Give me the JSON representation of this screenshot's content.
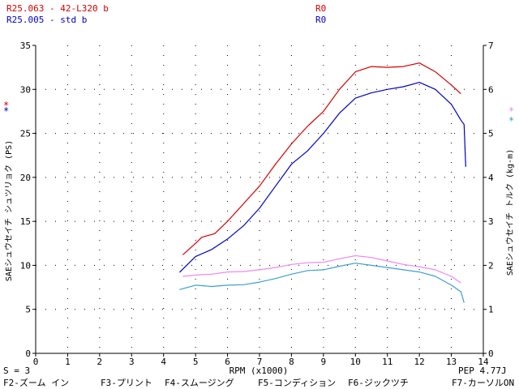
{
  "header": {
    "runs": [
      {
        "label": "R25.063 - 42-L320 b",
        "code": "R0",
        "color": "#d40000"
      },
      {
        "label": "R25.005 - std b",
        "code": "R0",
        "color": "#0000c8"
      }
    ]
  },
  "left_markers": [
    "*",
    "*"
  ],
  "right_markers": [
    "*",
    "*"
  ],
  "footer": {
    "smoothing": "S = 3",
    "version": "PEP 4.77J",
    "function_keys": [
      "F2-ズーム イン",
      "F3-プリント",
      "F4-スムージング",
      "F5-コンディション",
      "F6-ジックツチ",
      "F7-カーソルON"
    ]
  },
  "colors": {
    "power_red": "#d40000",
    "power_blue": "#0000c8",
    "torque_pink": "#ee88ee",
    "torque_cyan": "#3aa0cc",
    "axes": "#000000"
  },
  "chart_data": {
    "type": "line",
    "xlabel": "RPM (x1000)",
    "ylabel_left": "SAEシュウセイチ シュツリョク (PS)",
    "ylabel_right": "SAEシュウセイチ トルク (kg-m)",
    "xlim": [
      0,
      14
    ],
    "ylim_left": [
      0,
      35
    ],
    "ylim_right": [
      0,
      7
    ],
    "x_ticks": [
      "0",
      "1",
      "2",
      "3",
      "4",
      "5",
      "6",
      "7",
      "8",
      "9",
      "10",
      "11",
      "12",
      "13",
      "14"
    ],
    "y_ticks_left": [
      "0",
      "5",
      "10",
      "15",
      "20",
      "25",
      "30",
      "35"
    ],
    "y_ticks_right": [
      "0",
      "1",
      "2",
      "3",
      "4",
      "5",
      "6",
      "7"
    ],
    "grid": "dotted",
    "series": [
      {
        "name": "R25.063 - 42-L320 b",
        "axis": "left",
        "color": "#d40000",
        "x": [
          4.6,
          5.0,
          5.2,
          5.6,
          6.0,
          6.5,
          7.0,
          7.5,
          8.0,
          8.5,
          9.0,
          9.5,
          10.0,
          10.5,
          11.0,
          11.5,
          12.0,
          12.5,
          13.0,
          13.3
        ],
        "y": [
          11.2,
          12.5,
          13.2,
          13.6,
          15.0,
          17.0,
          19.0,
          21.5,
          23.8,
          25.8,
          27.5,
          30.0,
          32.0,
          32.6,
          32.5,
          32.6,
          33.0,
          32.0,
          30.5,
          29.5
        ]
      },
      {
        "name": "R25.005 - std b",
        "axis": "left",
        "color": "#0000c8",
        "x": [
          4.5,
          5.0,
          5.5,
          6.0,
          6.5,
          7.0,
          7.5,
          8.0,
          8.5,
          9.0,
          9.5,
          10.0,
          10.5,
          11.0,
          11.5,
          12.0,
          12.5,
          13.0,
          13.3,
          13.4,
          13.45
        ],
        "y": [
          9.2,
          11.0,
          11.8,
          13.0,
          14.5,
          16.5,
          19.0,
          21.5,
          23.0,
          25.0,
          27.3,
          29.0,
          29.6,
          30.0,
          30.3,
          30.8,
          30.0,
          28.3,
          26.5,
          26.0,
          21.2
        ]
      },
      {
        "name": "R25.063 - 42-L320 b",
        "axis": "right",
        "color": "#ee88ee",
        "x": [
          4.6,
          5.0,
          5.5,
          6.0,
          6.5,
          7.0,
          7.5,
          8.0,
          8.5,
          9.0,
          9.5,
          10.0,
          10.5,
          11.0,
          11.5,
          12.0,
          12.5,
          13.0,
          13.3
        ],
        "y": [
          1.75,
          1.78,
          1.8,
          1.85,
          1.86,
          1.9,
          1.95,
          2.02,
          2.06,
          2.07,
          2.15,
          2.22,
          2.18,
          2.1,
          2.02,
          1.97,
          1.9,
          1.75,
          1.6
        ]
      },
      {
        "name": "R25.005 - std b",
        "axis": "right",
        "color": "#3aa0cc",
        "x": [
          4.5,
          5.0,
          5.5,
          6.0,
          6.5,
          7.0,
          7.5,
          8.0,
          8.5,
          9.0,
          9.5,
          10.0,
          10.5,
          11.0,
          11.5,
          12.0,
          12.5,
          13.0,
          13.3,
          13.4
        ],
        "y": [
          1.45,
          1.55,
          1.52,
          1.55,
          1.56,
          1.62,
          1.7,
          1.8,
          1.88,
          1.9,
          1.98,
          2.05,
          2.0,
          1.95,
          1.9,
          1.85,
          1.75,
          1.55,
          1.4,
          1.15
        ]
      }
    ]
  }
}
